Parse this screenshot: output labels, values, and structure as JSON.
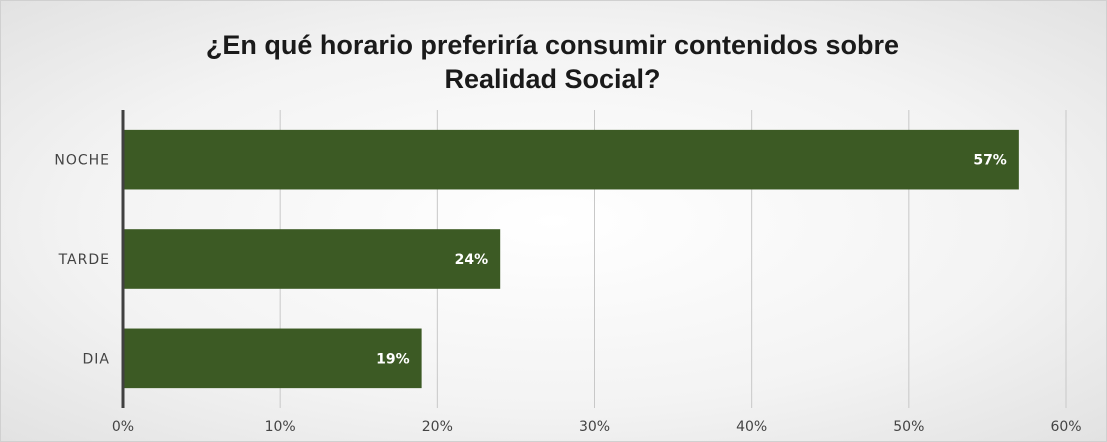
{
  "chart_data": {
    "type": "bar",
    "orientation": "horizontal",
    "title": "¿En qué horario preferiría consumir contenidos sobre Realidad Social?",
    "title_lines": [
      "¿En qué horario preferiría consumir contenidos sobre",
      "Realidad Social?"
    ],
    "categories": [
      "NOCHE",
      "TARDE",
      "DIA"
    ],
    "values": [
      57,
      24,
      19
    ],
    "data_labels": [
      "57%",
      "24%",
      "19%"
    ],
    "xlim": [
      0,
      60
    ],
    "x_ticks": [
      0,
      10,
      20,
      30,
      40,
      50,
      60
    ],
    "x_tick_labels": [
      "0%",
      "10%",
      "20%",
      "30%",
      "40%",
      "50%",
      "60%"
    ],
    "xlabel": "",
    "ylabel": "",
    "grid": "vertical",
    "legend": "none",
    "colors": {
      "bar": "#3c5a24",
      "gridline": "#c8c8c8",
      "axis": "#404040"
    }
  }
}
